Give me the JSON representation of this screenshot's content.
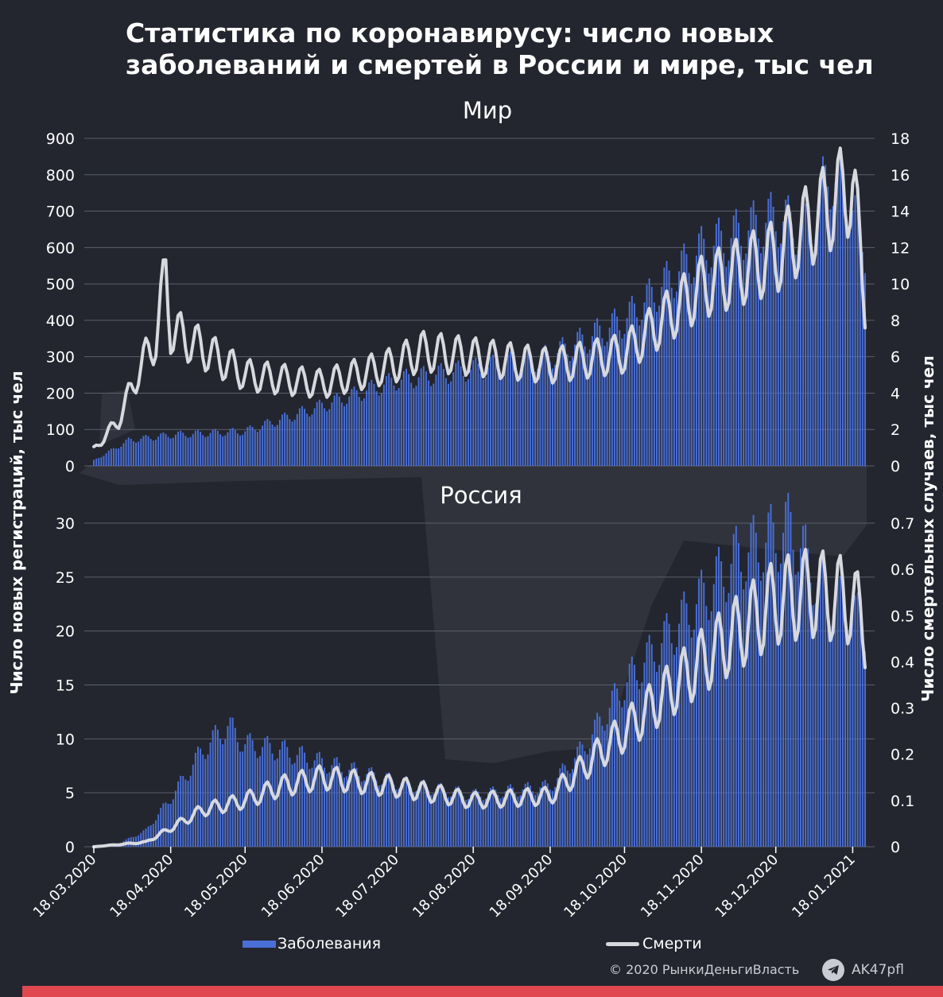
{
  "title_lines": [
    "Статистика по коронавирусу: число новых",
    "заболеваний и смертей в России и мире, тыс чел"
  ],
  "colors": {
    "background": "#23262f",
    "cases": "#4a6fd6",
    "deaths": "#d7d9df",
    "grid": "#5b5f6b",
    "accent_strip": "#e0474f"
  },
  "legend": {
    "cases": "Заболевания",
    "deaths": "Смерти"
  },
  "axis_titles": {
    "left": "Число новых регистраций, тыс чел",
    "right": "Число смертельных случаев, тыс чел"
  },
  "footer": {
    "copyright": "© 2020  РынкиДеньгиВласть",
    "handle": "AK47pfl",
    "handle_icon": "telegram-icon"
  },
  "chart_data": [
    {
      "type": "bar",
      "title": "Мир",
      "x_start": "18.03.2020",
      "x_end": "23.01.2021",
      "y_left_ticks": [
        "0",
        "100",
        "200",
        "300",
        "400",
        "500",
        "600",
        "700",
        "800",
        "900"
      ],
      "y_right_ticks": [
        "0",
        "2",
        "4",
        "6",
        "8",
        "10",
        "12",
        "14",
        "16",
        "18"
      ],
      "y_left_range": [
        0,
        900
      ],
      "y_right_range": [
        0,
        18
      ],
      "grid": true,
      "series": [
        {
          "name": "Заболевания",
          "axis": "left",
          "keypoints": [
            [
              "18.03.2020",
              15
            ],
            [
              "01.04.2020",
              70
            ],
            [
              "18.04.2020",
              85
            ],
            [
              "18.05.2020",
              95
            ],
            [
              "18.06.2020",
              165
            ],
            [
              "18.07.2020",
              235
            ],
            [
              "18.08.2020",
              265
            ],
            [
              "18.09.2020",
              300
            ],
            [
              "18.10.2020",
              400
            ],
            [
              "18.11.2020",
              590
            ],
            [
              "18.12.2020",
              680
            ],
            [
              "01.01.2021",
              640
            ],
            [
              "08.01.2021",
              810
            ],
            [
              "18.01.2021",
              700
            ],
            [
              "23.01.2021",
              600
            ]
          ],
          "max": 865
        },
        {
          "name": "Смерти",
          "axis": "right",
          "keypoints": [
            [
              "18.03.2020",
              0.9
            ],
            [
              "28.03.2020",
              2.5
            ],
            [
              "05.04.2020",
              5.2
            ],
            [
              "12.04.2020",
              7.0
            ],
            [
              "16.04.2020",
              10.5
            ],
            [
              "18.04.2020",
              7.5
            ],
            [
              "18.05.2020",
              5.0
            ],
            [
              "18.06.2020",
              4.5
            ],
            [
              "18.07.2020",
              5.6
            ],
            [
              "28.07.2020",
              6.3
            ],
            [
              "18.08.2020",
              6.0
            ],
            [
              "18.09.2020",
              5.5
            ],
            [
              "18.10.2020",
              6.2
            ],
            [
              "18.11.2020",
              9.8
            ],
            [
              "18.12.2020",
              11.5
            ],
            [
              "18.01.2021",
              15.5
            ],
            [
              "23.01.2021",
              9.2
            ]
          ]
        }
      ]
    },
    {
      "type": "bar",
      "title": "Россия",
      "x_ticks": [
        "18.03.2020",
        "18.04.2020",
        "18.05.2020",
        "18.06.2020",
        "18.07.2020",
        "18.08.2020",
        "18.09.2020",
        "18.10.2020",
        "18.11.2020",
        "18.12.2020",
        "18.01.2021"
      ],
      "y_left_ticks": [
        "0",
        "5",
        "10",
        "15",
        "20",
        "25",
        "30"
      ],
      "y_right_ticks": [
        "0",
        "0.1",
        "0.2",
        "0.3",
        "0.4",
        "0.5",
        "0.6",
        "0.7"
      ],
      "y_left_range": [
        0,
        30
      ],
      "y_right_range": [
        0,
        0.7
      ],
      "grid": true,
      "series": [
        {
          "name": "Заболевания",
          "axis": "left",
          "keypoints": [
            [
              "18.03.2020",
              0.05
            ],
            [
              "28.03.2020",
              0.3
            ],
            [
              "08.04.2020",
              1.5
            ],
            [
              "18.04.2020",
              4.5
            ],
            [
              "01.05.2020",
              9.0
            ],
            [
              "11.05.2020",
              11.2
            ],
            [
              "18.05.2020",
              9.5
            ],
            [
              "01.06.2020",
              9.0
            ],
            [
              "18.06.2020",
              7.8
            ],
            [
              "18.07.2020",
              6.0
            ],
            [
              "18.08.2020",
              4.8
            ],
            [
              "18.09.2020",
              5.6
            ],
            [
              "01.10.2020",
              9.0
            ],
            [
              "18.10.2020",
              15.0
            ],
            [
              "18.11.2020",
              23.0
            ],
            [
              "01.12.2020",
              26.5
            ],
            [
              "24.12.2020",
              29.5
            ],
            [
              "05.01.2021",
              24.0
            ],
            [
              "18.01.2021",
              21.5
            ],
            [
              "23.01.2021",
              20.5
            ]
          ]
        },
        {
          "name": "Смерти",
          "axis": "right",
          "keypoints": [
            [
              "18.03.2020",
              0.0
            ],
            [
              "08.04.2020",
              0.01
            ],
            [
              "18.04.2020",
              0.04
            ],
            [
              "01.05.2020",
              0.08
            ],
            [
              "18.05.2020",
              0.1
            ],
            [
              "01.06.2020",
              0.13
            ],
            [
              "18.06.2020",
              0.15
            ],
            [
              "18.07.2020",
              0.13
            ],
            [
              "18.08.2020",
              0.1
            ],
            [
              "18.09.2020",
              0.11
            ],
            [
              "18.10.2020",
              0.25
            ],
            [
              "18.11.2020",
              0.4
            ],
            [
              "18.12.2020",
              0.53
            ],
            [
              "01.01.2021",
              0.55
            ],
            [
              "18.01.2021",
              0.53
            ],
            [
              "23.01.2021",
              0.47
            ]
          ]
        }
      ]
    }
  ]
}
